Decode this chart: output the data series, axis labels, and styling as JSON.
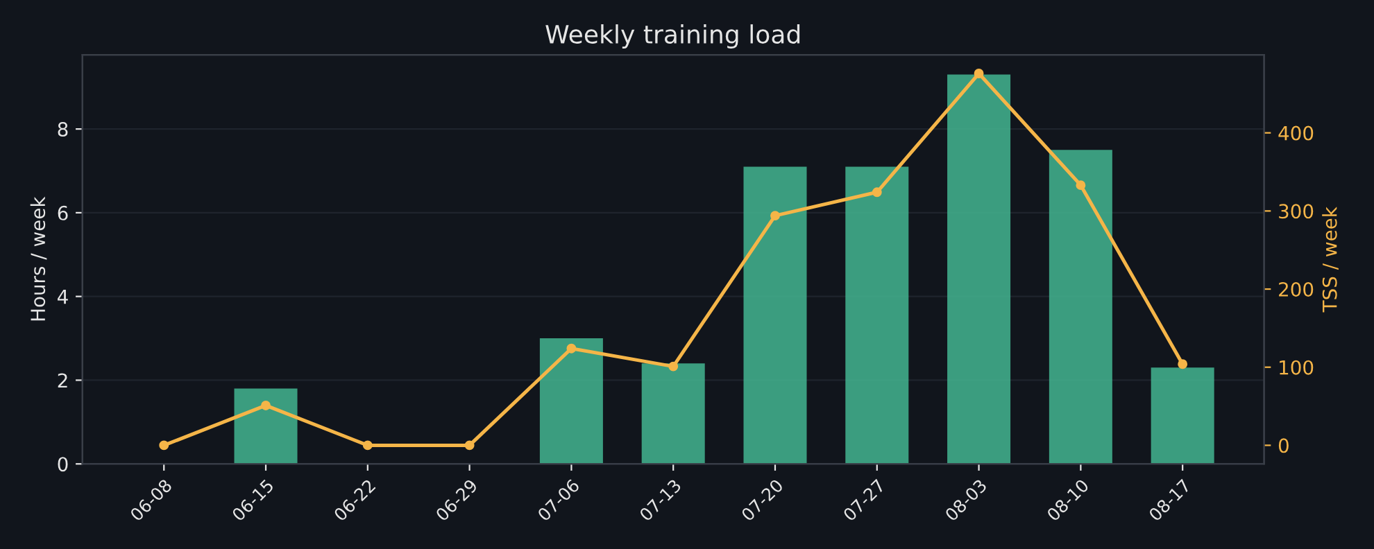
{
  "chart_data": {
    "type": "bar",
    "title": "Weekly training load",
    "ylabel": "Hours / week",
    "y2label": "TSS / week",
    "categories": [
      "06-08",
      "06-15",
      "06-22",
      "06-29",
      "07-06",
      "07-13",
      "07-20",
      "07-27",
      "08-03",
      "08-10",
      "08-17"
    ],
    "series": [
      {
        "color": "#43b590",
        "values": [
          0,
          1.8,
          0,
          0,
          3.0,
          2.4,
          7.1,
          7.1,
          9.3,
          7.5,
          2.3
        ]
      },
      {
        "type": "line",
        "axis": "y2",
        "color": "#f5b548",
        "marker": "circle",
        "values": [
          0,
          51,
          0,
          0,
          124,
          101,
          294,
          324,
          476,
          333,
          104
        ]
      }
    ],
    "ylim": [
      0,
      9.77
    ],
    "yticks": [
      0,
      2,
      4,
      6,
      8
    ],
    "y2lim": [
      -23.8,
      499.8
    ],
    "y2ticks": [
      0,
      100,
      200,
      300,
      400
    ],
    "grid": "y"
  }
}
